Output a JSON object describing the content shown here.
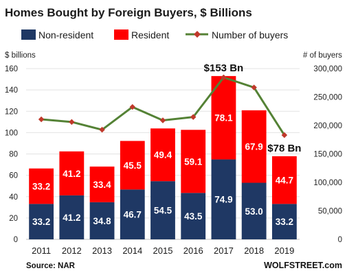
{
  "chart_data": {
    "type": "bar",
    "stacked": true,
    "title": "Homes Bought by Foreign Buyers, $ Billions",
    "categories": [
      "2011",
      "2012",
      "2013",
      "2014",
      "2015",
      "2016",
      "2017",
      "2018",
      "2019"
    ],
    "series": [
      {
        "name": "Non-resident",
        "color": "#1f3864",
        "values": [
          33.2,
          41.2,
          34.8,
          46.7,
          54.5,
          43.5,
          74.9,
          53.0,
          33.2
        ],
        "labels": [
          "33.2",
          "41.2",
          "34.8",
          "46.7",
          "54.5",
          "43.5",
          "74.9",
          "53.0",
          "33.2"
        ]
      },
      {
        "name": "Resident",
        "color": "#ff0000",
        "values": [
          33.2,
          41.2,
          33.4,
          45.5,
          49.4,
          59.1,
          78.1,
          67.9,
          44.7
        ],
        "labels": [
          "33.2",
          "41.2",
          "33.4",
          "45.5",
          "49.4",
          "59.1",
          "78.1",
          "67.9",
          "44.7"
        ]
      }
    ],
    "line_series": {
      "name": "Number of buyers",
      "color": "#548235",
      "axis": "right",
      "values": [
        210800,
        206200,
        192600,
        232600,
        209000,
        214900,
        284500,
        266800,
        183100
      ]
    },
    "y_left": {
      "label": "$ billions",
      "ylim": [
        0,
        160
      ],
      "ticks": [
        "0",
        "20",
        "40",
        "60",
        "80",
        "100",
        "120",
        "140",
        "160"
      ]
    },
    "y_right": {
      "label": "# of buyers",
      "ylim": [
        0,
        300000
      ],
      "ticks": [
        "0",
        "50,000",
        "100,000",
        "150,000",
        "200,000",
        "250,000",
        "300,000"
      ]
    },
    "annotations": [
      {
        "text": "$153 Bn",
        "category": "2017"
      },
      {
        "text": "$78 Bn",
        "category": "2019"
      }
    ],
    "legend_position": "top",
    "grid": true,
    "source": "Source: NAR",
    "brand": "WOLFSTREET.com"
  }
}
